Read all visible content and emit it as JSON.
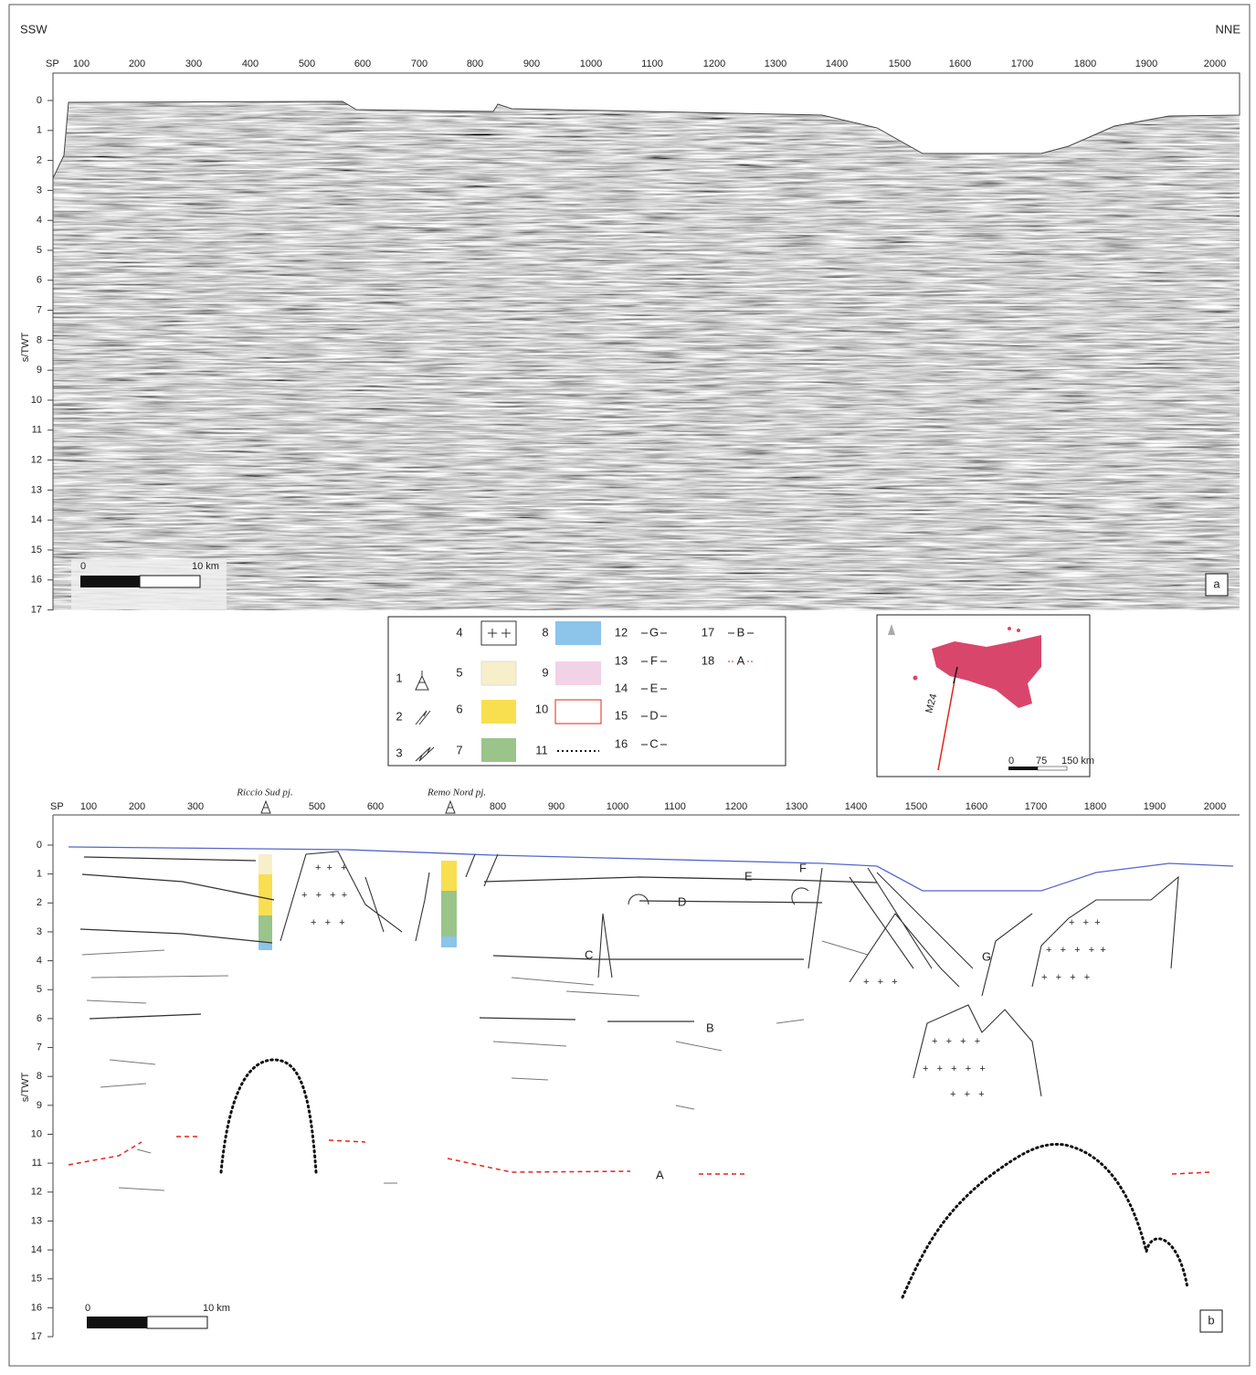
{
  "panel_a": {
    "left_label": "SSW",
    "right_label": "NNE",
    "sp_label": "SP",
    "sp_ticks": [
      100,
      200,
      300,
      400,
      500,
      600,
      700,
      800,
      900,
      1000,
      1100,
      1200,
      1300,
      1400,
      1500,
      1600,
      1700,
      1800,
      1900,
      2000
    ],
    "y_label": "s/TWT",
    "y_ticks": [
      0,
      1,
      2,
      3,
      4,
      5,
      6,
      7,
      8,
      9,
      10,
      11,
      12,
      13,
      14,
      15,
      16,
      17
    ],
    "scale_bar": {
      "start": "0",
      "end": "10 km"
    },
    "panel_label": "a"
  },
  "legend": {
    "items": [
      {
        "number": "1"
      },
      {
        "number": "2"
      },
      {
        "number": "3"
      },
      {
        "number": "4"
      },
      {
        "number": "5"
      },
      {
        "number": "6"
      },
      {
        "number": "7"
      },
      {
        "number": "8"
      },
      {
        "number": "9"
      },
      {
        "number": "10"
      },
      {
        "number": "11"
      },
      {
        "number": "12",
        "label": "G"
      },
      {
        "number": "13",
        "label": "F"
      },
      {
        "number": "14",
        "label": "E"
      },
      {
        "number": "15",
        "label": "D"
      },
      {
        "number": "16",
        "label": "C"
      },
      {
        "number": "17",
        "label": "B"
      },
      {
        "number": "18",
        "label": "A"
      }
    ]
  },
  "location_map": {
    "line_label": "M24",
    "scale": [
      "0",
      "75",
      "150 km"
    ]
  },
  "panel_b": {
    "sp_label": "SP",
    "sp_ticks": [
      100,
      200,
      300,
      500,
      600,
      800,
      900,
      1000,
      1100,
      1200,
      1300,
      1400,
      1500,
      1600,
      1700,
      1800,
      1900,
      2000
    ],
    "wells": [
      "Riccio Sud pj.",
      "Remo Nord pj."
    ],
    "horizons": [
      "E",
      "F",
      "D",
      "C",
      "G",
      "B",
      "A"
    ],
    "y_label": "s/TWT",
    "y_ticks": [
      0,
      1,
      2,
      3,
      4,
      5,
      6,
      7,
      8,
      9,
      10,
      11,
      12,
      13,
      14,
      15,
      16,
      17
    ],
    "scale_bar": {
      "start": "0",
      "end": "10 km"
    },
    "panel_label": "b"
  }
}
